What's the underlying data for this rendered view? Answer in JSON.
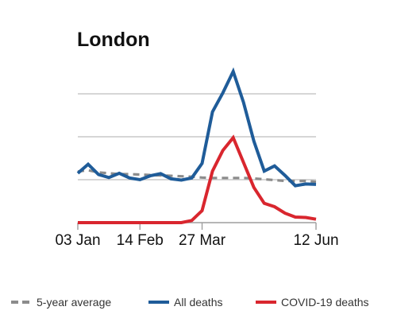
{
  "chart_data": {
    "type": "line",
    "title": "London",
    "xlabel": "",
    "ylabel": "",
    "grid": true,
    "legend_position": "bottom",
    "x_tick_labels": [
      "03 Jan",
      "14 Feb",
      "27 Mar",
      "12 Jun"
    ],
    "x_tick_weeks": [
      0,
      6,
      12,
      23
    ],
    "ylim": [
      0,
      4
    ],
    "series": [
      {
        "name": "5-year average",
        "color": "#8c8c8c",
        "style": "dashed",
        "values": [
          1.19,
          1.22,
          1.17,
          1.15,
          1.13,
          1.13,
          1.12,
          1.11,
          1.1,
          1.09,
          1.08,
          1.07,
          1.05,
          1.04,
          1.04,
          1.04,
          1.04,
          1.03,
          1.01,
          0.99,
          0.97,
          0.97,
          0.97,
          0.95
        ]
      },
      {
        "name": "All deaths",
        "color": "#1f5c99",
        "style": "solid",
        "values": [
          1.15,
          1.36,
          1.12,
          1.05,
          1.15,
          1.04,
          1.0,
          1.09,
          1.14,
          1.02,
          0.99,
          1.04,
          1.38,
          2.58,
          3.02,
          3.52,
          2.8,
          1.9,
          1.2,
          1.32,
          1.1,
          0.86,
          0.9,
          0.89
        ]
      },
      {
        "name": "COVID-19 deaths",
        "color": "#d9262e",
        "style": "solid",
        "values": [
          0,
          0,
          0,
          0,
          0,
          0,
          0,
          0,
          0,
          0,
          0,
          0.05,
          0.28,
          1.2,
          1.68,
          1.98,
          1.4,
          0.82,
          0.45,
          0.37,
          0.22,
          0.13,
          0.12,
          0.08
        ]
      }
    ]
  }
}
